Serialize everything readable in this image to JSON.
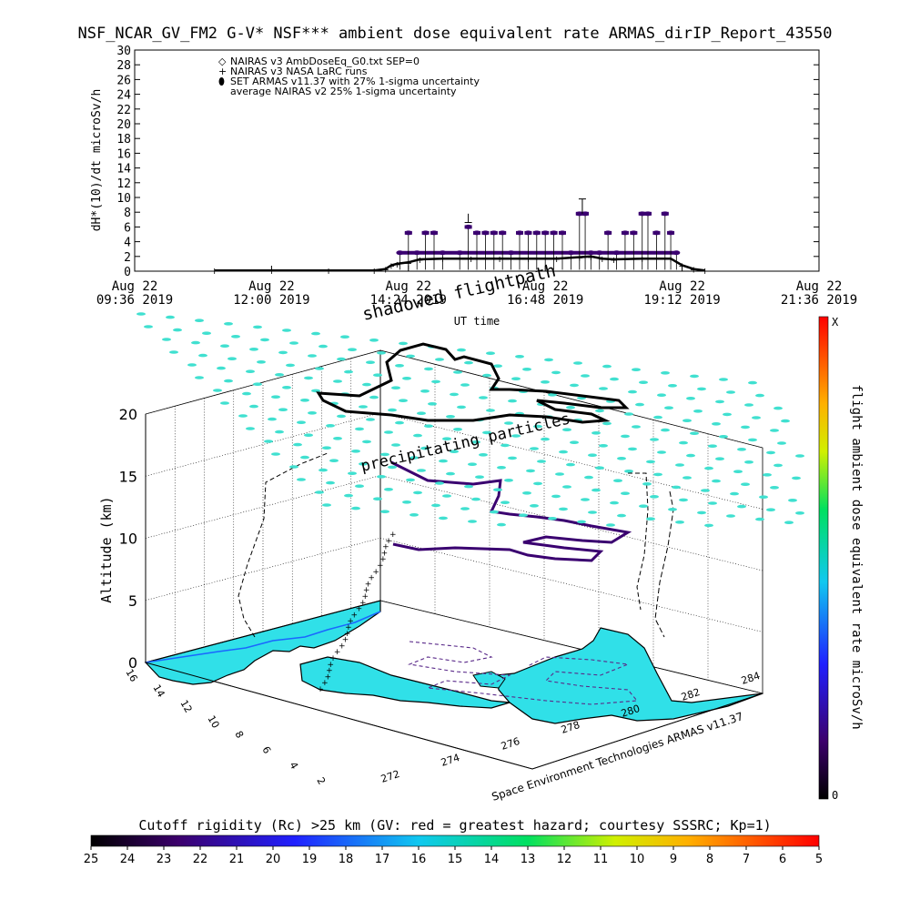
{
  "header": {
    "title": "NSF_NCAR_GV_FM2 G-V* NSF*** ambient dose equivalent rate ARMAS_dirIP_Report_43550"
  },
  "chart_data": [
    {
      "type": "scatter",
      "title": "NSF_NCAR_GV_FM2 G-V* NSF*** ambient dose equivalent rate ARMAS_dirIP_Report_43550",
      "xlabel": "UT time",
      "ylabel": "dH*(10)/dt microSv/h",
      "ylim": [
        0,
        30
      ],
      "yticks": [
        0,
        2,
        4,
        6,
        8,
        10,
        12,
        14,
        16,
        18,
        20,
        22,
        24,
        26,
        28,
        30
      ],
      "xticks": [
        {
          "line1": "Aug 22",
          "line2": "09:36 2019"
        },
        {
          "line1": "Aug 22",
          "line2": "12:00 2019"
        },
        {
          "line1": "Aug 22",
          "line2": "14:24 2019"
        },
        {
          "line1": "Aug 22",
          "line2": "16:48 2019"
        },
        {
          "line1": "Aug 22",
          "line2": "19:12 2019"
        },
        {
          "line1": "Aug 22",
          "line2": "21:36 2019"
        }
      ],
      "xlim_hours": [
        9.6,
        21.6
      ],
      "legend_position": "top-left",
      "legend": [
        {
          "symbol": "◇",
          "label": "NAIRAS v3 AmbDoseEq_G0.txt SEP=0",
          "color": "#000000"
        },
        {
          "symbol": "+",
          "label": "NAIRAS v3 NASA LaRC runs",
          "color": "#000000"
        },
        {
          "symbol": "⬮",
          "label": "SET ARMAS v11.37 with 27% 1-sigma uncertainty",
          "color": "#0000ff"
        },
        {
          "symbol": "",
          "label": "average NAIRAS v2 25% 1-sigma uncertainty",
          "color": "#000000"
        }
      ],
      "series": [
        {
          "name": "NAIRAS v3 NASA LaRC runs",
          "color": "#000000",
          "points": [
            [
              11.0,
              0.1
            ],
            [
              12.0,
              0.1
            ],
            [
              13.0,
              0.1
            ],
            [
              13.8,
              0.1
            ],
            [
              14.0,
              0.3
            ],
            [
              14.1,
              0.8
            ],
            [
              14.2,
              1.0
            ],
            [
              14.4,
              1.2
            ],
            [
              14.6,
              1.6
            ],
            [
              15.0,
              1.7
            ],
            [
              15.5,
              1.7
            ],
            [
              16.0,
              1.7
            ],
            [
              16.5,
              1.7
            ],
            [
              17.0,
              1.7
            ],
            [
              17.4,
              1.9
            ],
            [
              17.6,
              2.0
            ],
            [
              17.8,
              1.7
            ],
            [
              18.0,
              1.6
            ],
            [
              18.5,
              1.7
            ],
            [
              19.0,
              1.7
            ],
            [
              19.2,
              0.8
            ],
            [
              19.4,
              0.3
            ],
            [
              19.6,
              0.1
            ]
          ]
        },
        {
          "name": "SET ARMAS v11.37 with 27% 1-sigma uncertainty",
          "color": "#3a0070",
          "points": [
            [
              14.25,
              2.5
            ],
            [
              14.4,
              5.2
            ],
            [
              14.55,
              2.5
            ],
            [
              14.7,
              5.2
            ],
            [
              14.85,
              5.2
            ],
            [
              15.0,
              2.5
            ],
            [
              15.3,
              2.5
            ],
            [
              15.45,
              6.0
            ],
            [
              15.6,
              5.2
            ],
            [
              15.75,
              5.2
            ],
            [
              15.9,
              5.2
            ],
            [
              16.05,
              5.2
            ],
            [
              16.2,
              2.5
            ],
            [
              16.35,
              5.2
            ],
            [
              16.5,
              5.2
            ],
            [
              16.65,
              5.2
            ],
            [
              16.8,
              5.2
            ],
            [
              16.95,
              5.2
            ],
            [
              17.1,
              5.2
            ],
            [
              17.25,
              2.5
            ],
            [
              17.4,
              7.8
            ],
            [
              17.5,
              7.8
            ],
            [
              17.6,
              2.5
            ],
            [
              17.75,
              2.5
            ],
            [
              17.9,
              5.2
            ],
            [
              18.05,
              2.5
            ],
            [
              18.2,
              5.2
            ],
            [
              18.35,
              5.2
            ],
            [
              18.5,
              7.8
            ],
            [
              18.6,
              7.8
            ],
            [
              18.75,
              5.2
            ],
            [
              18.9,
              7.8
            ],
            [
              19.0,
              5.2
            ],
            [
              19.1,
              2.5
            ]
          ]
        }
      ]
    },
    {
      "type": "scatter",
      "xlabel": "",
      "ylabel": "Altitude (km)",
      "zticks": [
        "0",
        "5",
        "10",
        "15",
        "20"
      ],
      "x_ticks": [
        "272",
        "274",
        "276",
        "278",
        "280",
        "282",
        "284"
      ],
      "y_ticks": [
        "16",
        "14",
        "12",
        "10",
        "8",
        "6",
        "4",
        "2"
      ],
      "annotations": [
        "shadowed flightpath",
        "precipitating particles"
      ],
      "credit": "Space Environment Technologies ARMAS v11.37",
      "colorbar_right": {
        "label": "flight ambient dose equivalent rate microSv/h",
        "top": "X",
        "bottom": "0"
      },
      "colorbar_bottom": {
        "label": "Cutoff rigidity (Rc) >25 km (GV: red = greatest hazard; courtesy SSSRC; Kp=1)",
        "ticks": [
          "25",
          "24",
          "23",
          "22",
          "21",
          "20",
          "19",
          "18",
          "17",
          "16",
          "15",
          "14",
          "13",
          "12",
          "11",
          "10",
          "9",
          "8",
          "7",
          "6",
          "5"
        ]
      }
    }
  ],
  "colors": {
    "ocean": "#ffffff",
    "land": "#30e0e8",
    "markers": "#40e0d0",
    "flight_high": "#3a0070",
    "flight_low": "#000000"
  }
}
